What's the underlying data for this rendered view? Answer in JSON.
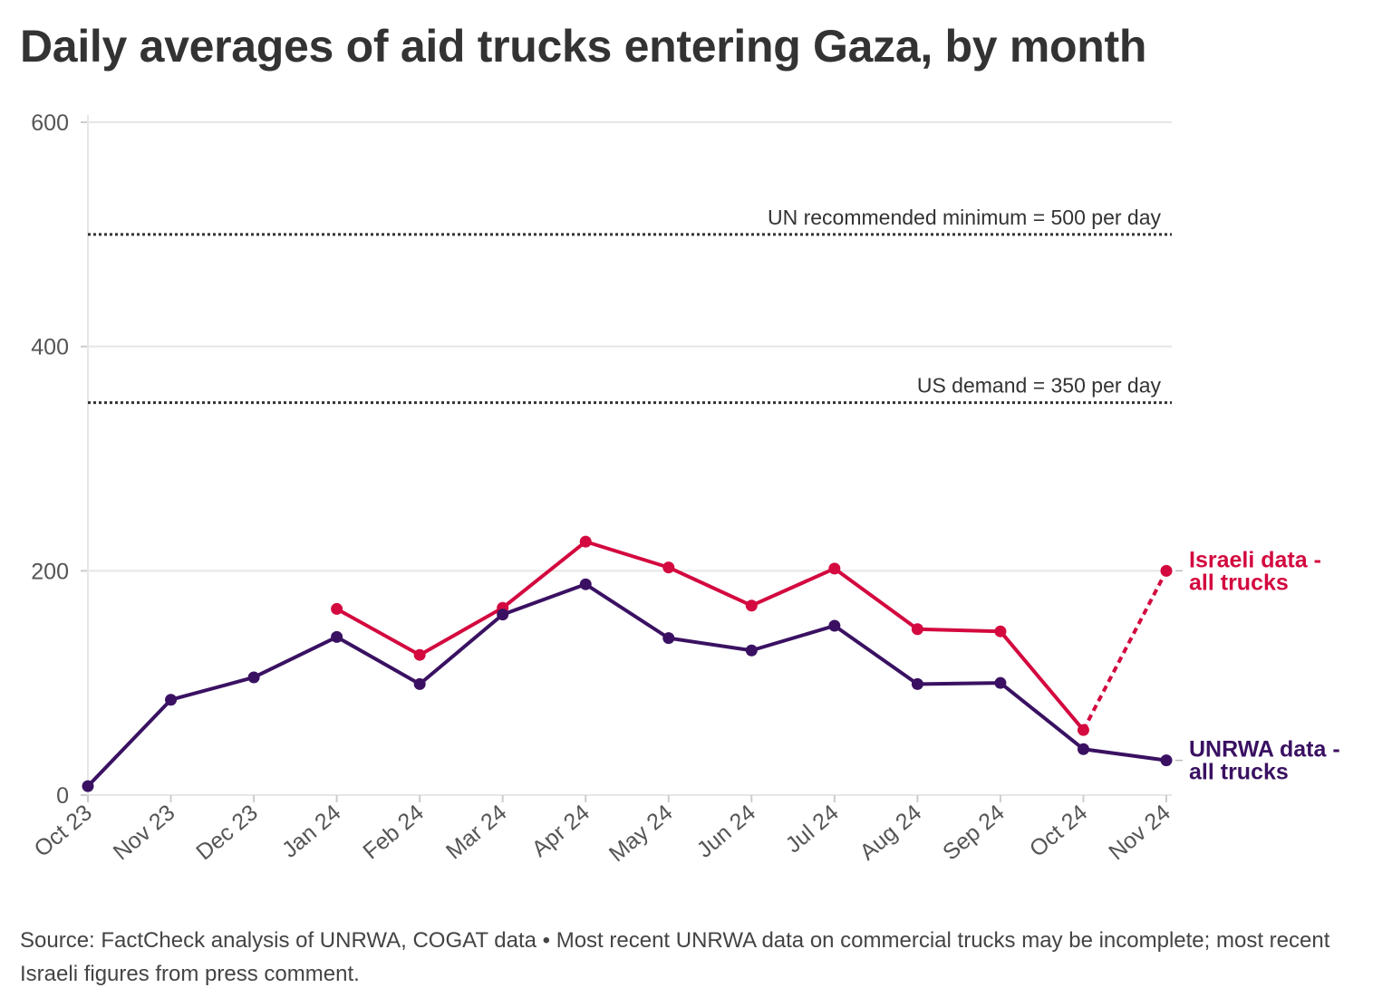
{
  "chart_data": {
    "type": "line",
    "title": "Daily averages of aid trucks entering Gaza, by month",
    "xlabel": "",
    "ylabel": "",
    "ylim": [
      0,
      600
    ],
    "yticks": [
      0,
      200,
      400,
      600
    ],
    "grid": true,
    "categories": [
      "Oct 23",
      "Nov 23",
      "Dec 23",
      "Jan 24",
      "Feb 24",
      "Mar 24",
      "Apr 24",
      "May 24",
      "Jun 24",
      "Jul 24",
      "Aug 24",
      "Sep 24",
      "Oct 24",
      "Nov 24"
    ],
    "series": [
      {
        "name": "Israeli data - all trucks",
        "label_lines": [
          "Israeli data -",
          "all trucks"
        ],
        "color": "#d3093f",
        "values": [
          null,
          null,
          null,
          166,
          125,
          167,
          226,
          203,
          169,
          202,
          148,
          146,
          58,
          200
        ],
        "dashed_last_segment": true
      },
      {
        "name": "UNRWA data - all trucks",
        "label_lines": [
          "UNRWA data -",
          "all trucks"
        ],
        "color": "#3a1162",
        "values": [
          8,
          85,
          105,
          141,
          99,
          161,
          188,
          140,
          129,
          151,
          99,
          100,
          41,
          31
        ],
        "dashed_last_segment": false
      }
    ],
    "reference_lines": [
      {
        "value": 500,
        "label": "UN recommended minimum = 500 per day"
      },
      {
        "value": 350,
        "label": "US demand = 350 per day"
      }
    ]
  },
  "source": "Source: FactCheck analysis of UNRWA, COGAT data • Most recent UNRWA data on commercial trucks may be incomplete; most recent Israeli figures from press comment."
}
